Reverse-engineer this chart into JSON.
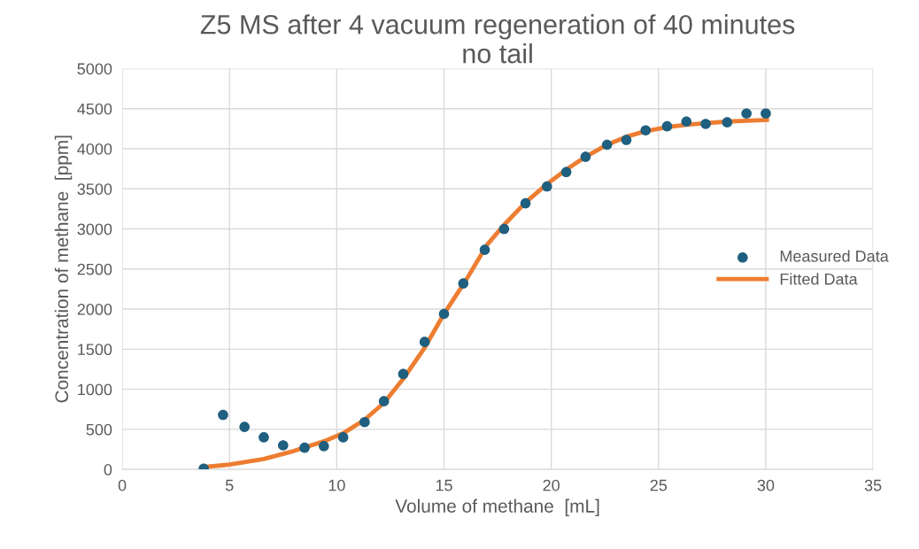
{
  "chart_data": {
    "type": "scatter",
    "title": "Z5 MS after 4 vacuum regeneration of 40 minutes\nno tail",
    "xlabel": "Volume of methane  [mL]",
    "ylabel": "Concentration of methane  [ppm]",
    "xlim": [
      0,
      35
    ],
    "xticks": [
      0,
      5,
      10,
      15,
      20,
      25,
      30,
      35
    ],
    "ylim": [
      0,
      5000
    ],
    "yticks": [
      0,
      500,
      1000,
      1500,
      2000,
      2500,
      3000,
      3500,
      4000,
      4500,
      5000
    ],
    "grid": true,
    "legend": "center right",
    "series": [
      {
        "name": "Measured Data",
        "marker": "circle",
        "color": "#1f5f7f",
        "x": [
          3.8,
          4.7,
          5.7,
          6.6,
          7.5,
          8.5,
          9.4,
          10.3,
          11.3,
          12.2,
          13.1,
          14.1,
          15,
          15.9,
          16.9,
          17.8,
          18.8,
          19.8,
          20.7,
          21.6,
          22.6,
          23.5,
          24.4,
          25.4,
          26.3,
          27.2,
          28.2,
          29.1,
          30
        ],
        "values": [
          10,
          680,
          530,
          400,
          300,
          270,
          290,
          400,
          590,
          850,
          1190,
          1590,
          1940,
          2320,
          2740,
          3000,
          3320,
          3530,
          3710,
          3900,
          4050,
          4110,
          4230,
          4280,
          4340,
          4310,
          4330,
          4440,
          4440
        ]
      },
      {
        "name": "Fitted Data",
        "type": "line",
        "marker": "none",
        "line_style": "solid",
        "color": "#ed7d31",
        "x": [
          3.8,
          5,
          6.6,
          8,
          9.4,
          10.3,
          11.3,
          12.2,
          13.1,
          14.1,
          15,
          16,
          17,
          17.8,
          18.8,
          19.8,
          20.7,
          21.6,
          22.6,
          23.5,
          24.4,
          25.4,
          26.3,
          27.2,
          28.2,
          29.1,
          30.05
        ],
        "values": [
          30,
          60,
          130,
          230,
          350,
          450,
          620,
          830,
          1130,
          1520,
          1940,
          2350,
          2800,
          3050,
          3330,
          3560,
          3740,
          3900,
          4050,
          4150,
          4220,
          4270,
          4300,
          4320,
          4340,
          4350,
          4360
        ]
      }
    ]
  }
}
